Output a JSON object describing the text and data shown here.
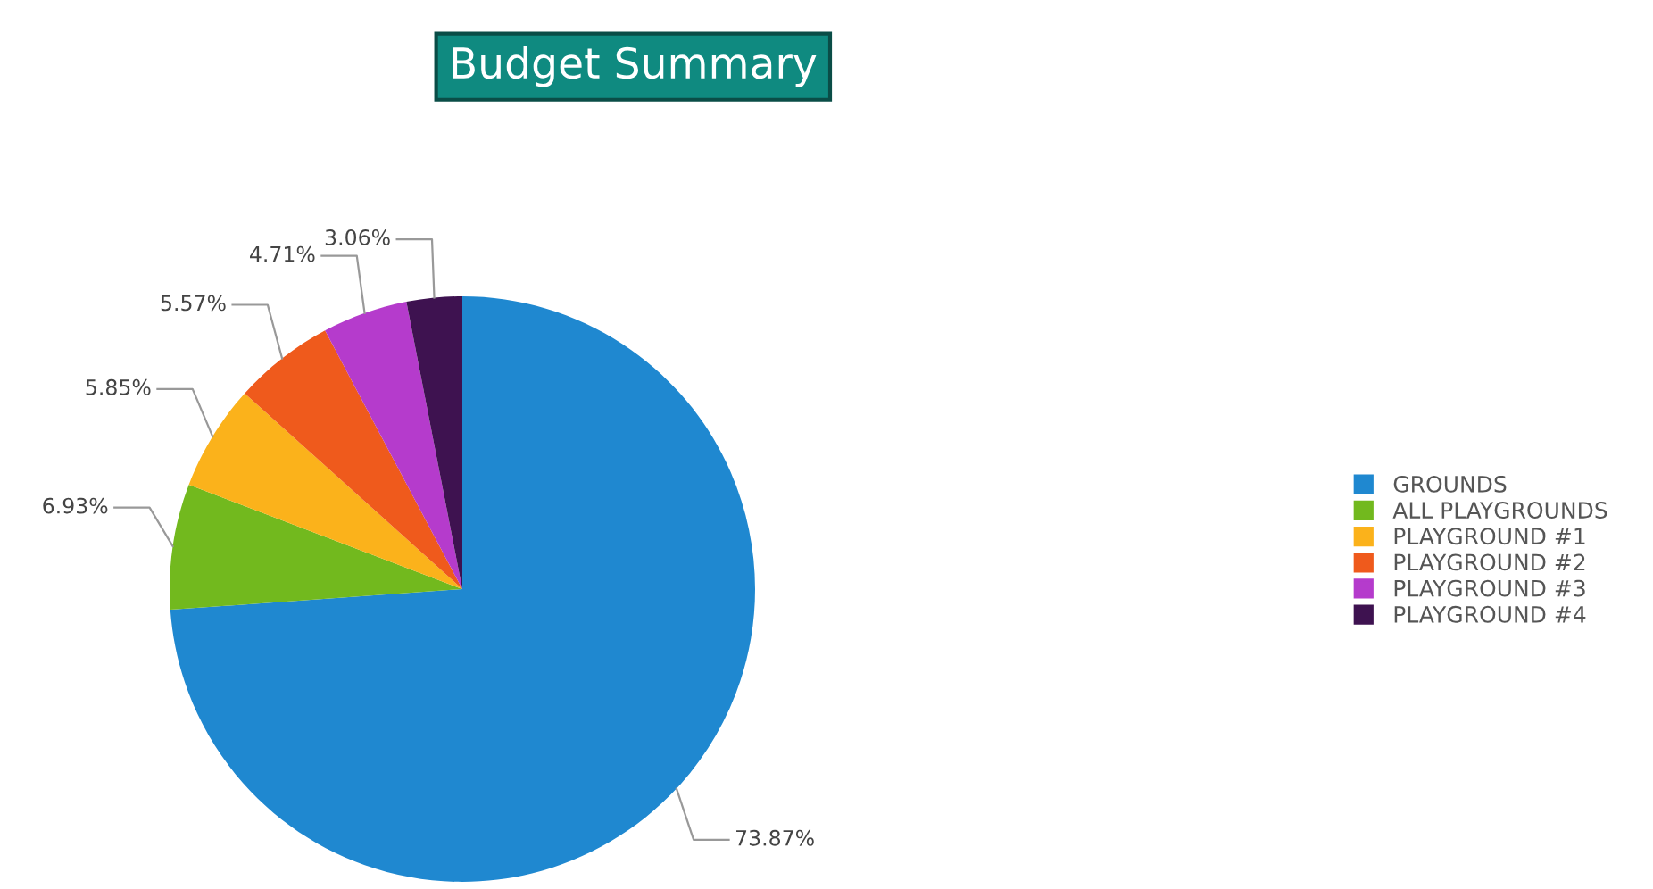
{
  "chart_data": {
    "type": "pie",
    "title": "Budget Summary",
    "categories": [
      "GROUNDS",
      "ALL PLAYGROUNDS",
      "PLAYGROUND #1",
      "PLAYGROUND #2",
      "PLAYGROUND #3",
      "PLAYGROUND #4"
    ],
    "values": [
      73.87,
      6.93,
      5.85,
      5.57,
      4.71,
      3.06
    ],
    "colors": [
      "#1f88d0",
      "#72b91e",
      "#fbb21b",
      "#ef5a1c",
      "#b53bcc",
      "#3e1250"
    ],
    "value_labels": [
      "73.87%",
      "6.93%",
      "5.85%",
      "5.57%",
      "4.71%",
      "3.06%"
    ],
    "legend": "right"
  }
}
